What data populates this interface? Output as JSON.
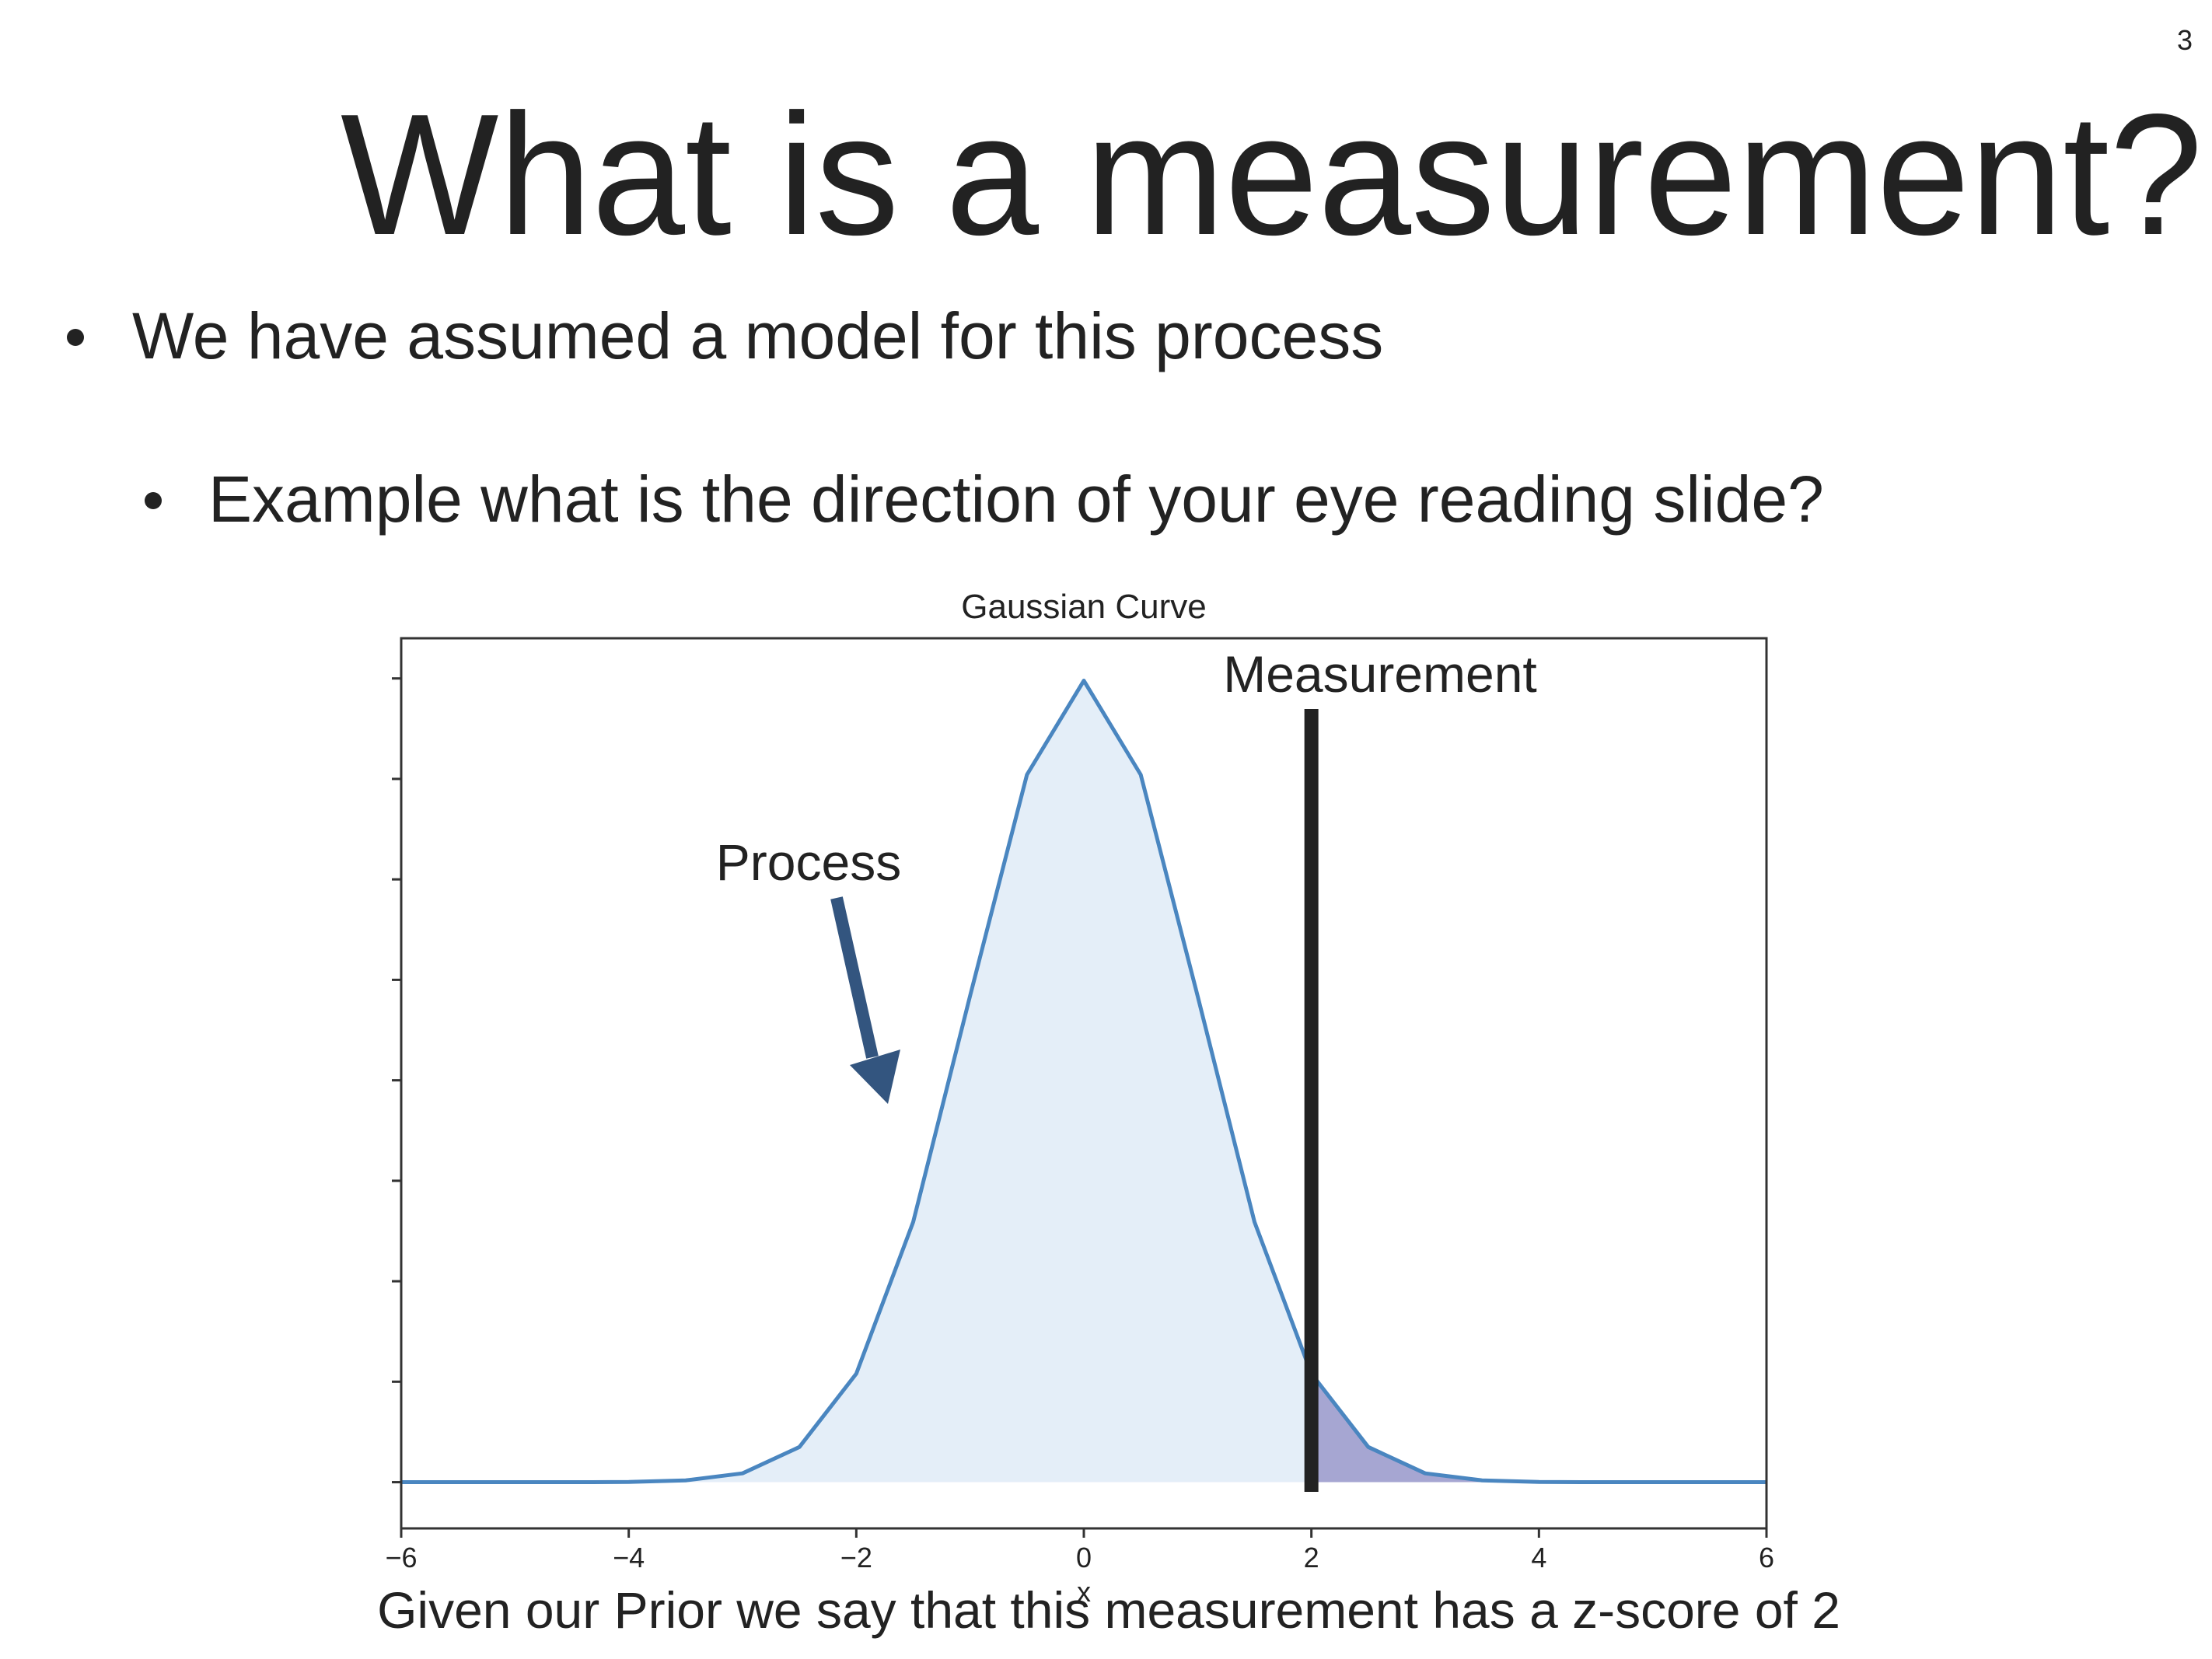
{
  "page_number": "3",
  "title": "What is a measurement?",
  "bullets": [
    "We have assumed a model for this process",
    "Example what is the direction of your eye reading slide?"
  ],
  "chart_data": {
    "type": "line",
    "title": "Gaussian Curve",
    "x_label": "x",
    "x": [
      -6,
      -5.5,
      -5,
      -4.5,
      -4,
      -3.5,
      -3,
      -2.5,
      -2,
      -1.5,
      -1,
      -0.5,
      0,
      0.5,
      1,
      1.5,
      2,
      2.5,
      3,
      3.5,
      4,
      4.5,
      5,
      5.5,
      6
    ],
    "values": [
      0,
      0,
      0,
      0,
      0.0001,
      0.0009,
      0.0044,
      0.0175,
      0.054,
      0.1295,
      0.242,
      0.3521,
      0.3989,
      0.3521,
      0.242,
      0.1295,
      0.054,
      0.0175,
      0.0044,
      0.0009,
      0.0001,
      0,
      0,
      0,
      0
    ],
    "color": "#4a86c0",
    "fill_color": "#e4eef8",
    "highlight_color": "#a6a6d2",
    "xlim": [
      -6,
      6
    ],
    "ylim": [
      -0.023,
      0.42
    ],
    "xticks": [
      {
        "value": -6,
        "label": "−6"
      },
      {
        "value": -4,
        "label": "−4"
      },
      {
        "value": -2,
        "label": "−2"
      },
      0,
      2,
      4,
      6
    ],
    "yticks": [
      0,
      0.05,
      0.1,
      0.15,
      0.2,
      0.25,
      0.3,
      0.35,
      0.4
    ],
    "measurement": {
      "label": "Measurement",
      "x": 2,
      "color": "#222222"
    },
    "process_label": "Process"
  },
  "caption": "Given our Prior we say that this measurement has a z-score of 2"
}
